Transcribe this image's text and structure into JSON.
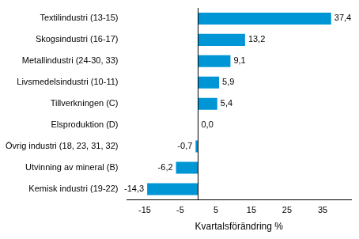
{
  "chart_data": {
    "type": "bar",
    "orientation": "horizontal",
    "categories": [
      "Textilindustri (13-15)",
      "Skogsindustri (16-17)",
      "Metallindustri (24-30, 33)",
      "Livsmedelsindustri (10-11)",
      "Tillverkningen (C)",
      "Elsproduktion (D)",
      "Övrig industri (18, 23, 31, 32)",
      "Utvinning av mineral (B)",
      "Kemisk industri (19-22)"
    ],
    "values": [
      37.4,
      13.2,
      9.1,
      5.9,
      5.4,
      0.0,
      -0.7,
      -6.2,
      -14.3
    ],
    "value_labels": [
      "37,4",
      "13,2",
      "9,1",
      "5,9",
      "5,4",
      "0,0",
      "-0,7",
      "-6,2",
      "-14,3"
    ],
    "data_labels": true,
    "color": "#0096d6",
    "x_label": "Kvartalsförändring %",
    "xlim": [
      -20,
      43
    ],
    "xticks": [
      -15,
      -5,
      5,
      15,
      25,
      35
    ],
    "grid": false
  }
}
